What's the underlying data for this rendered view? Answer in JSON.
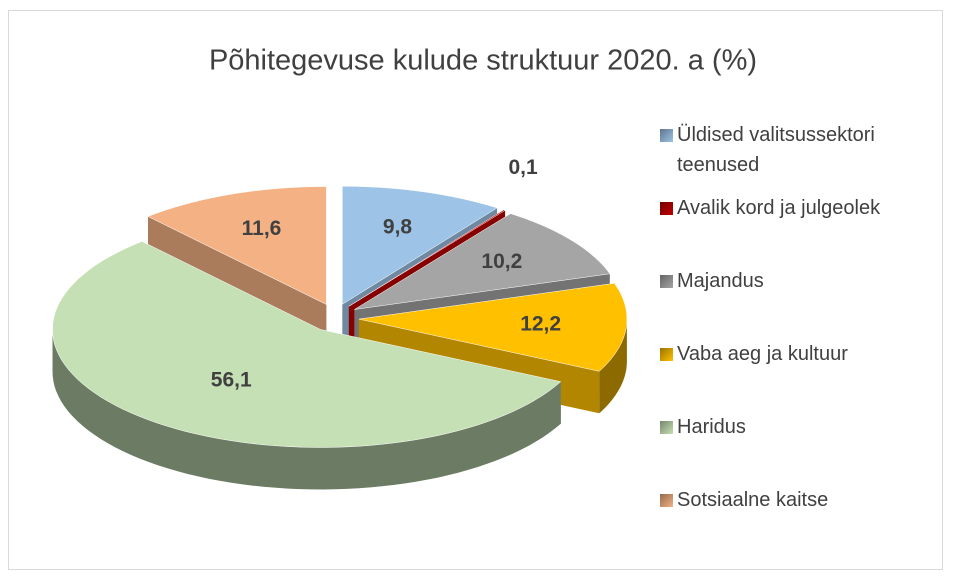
{
  "chart_data": {
    "type": "pie3d",
    "title": "Põhitegevuse kulude struktuur 2020. a (%)",
    "categories": [
      "Üldised valitsussektori teenused",
      "Avalik kord ja julgeolek",
      "Majandus",
      "Vaba aeg ja kultuur",
      "Haridus",
      "Sotsiaalne kaitse"
    ],
    "values": [
      9.8,
      0.1,
      10.2,
      12.2,
      56.1,
      11.6
    ],
    "value_labels": [
      "9,8",
      "0,1",
      "10,2",
      "12,2",
      "56,1",
      "11,6"
    ],
    "colors": [
      "#9dc3e6",
      "#c00000",
      "#a5a5a5",
      "#ffc000",
      "#c5e0b4",
      "#f4b183"
    ],
    "legend": "right"
  }
}
